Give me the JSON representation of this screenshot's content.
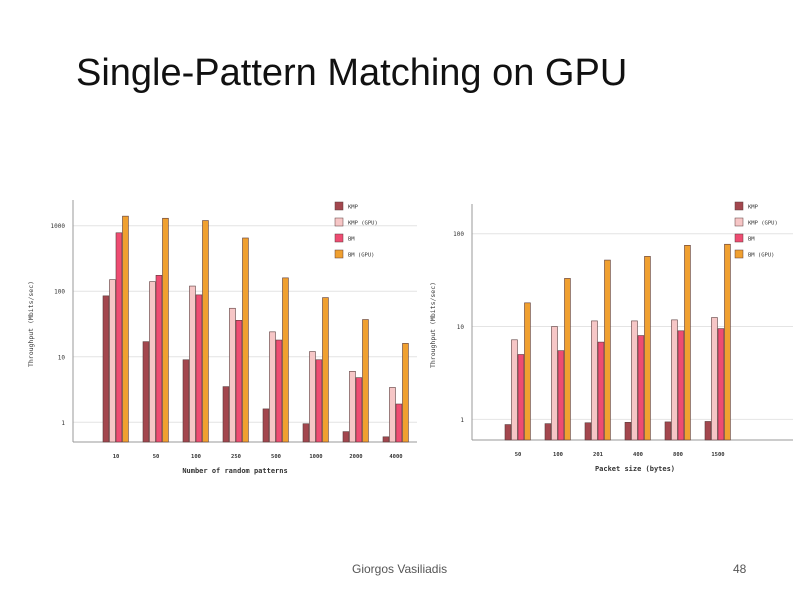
{
  "slide": {
    "title": "Single-Pattern Matching on GPU",
    "author": "Giorgos Vasiliadis",
    "page_number": "48"
  },
  "colors": {
    "KMP": "#a3474e",
    "KMP (GPU)": "#f6c6c6",
    "BM": "#ee4c72",
    "BM (GPU)": "#f0a030"
  },
  "chart_data": [
    {
      "type": "bar",
      "scale": "log",
      "ylabel": "Throughput (Mbits/sec)",
      "xlabel": "Number of random patterns",
      "categories": [
        "10",
        "50",
        "100",
        "250",
        "500",
        "1000",
        "2000",
        "4000"
      ],
      "ylim": [
        0.5,
        2000
      ],
      "yticks": [
        {
          "value": 1,
          "label": "1"
        },
        {
          "value": 10,
          "label": "10"
        },
        {
          "value": 100,
          "label": "100"
        },
        {
          "value": 1000,
          "label": "1000"
        }
      ],
      "legend": [
        "KMP",
        "KMP (GPU)",
        "BM",
        "BM (GPU)"
      ],
      "series": [
        {
          "name": "KMP",
          "values": [
            85,
            17,
            9,
            3.5,
            1.6,
            0.95,
            0.72,
            0.6
          ]
        },
        {
          "name": "KMP (GPU)",
          "values": [
            150,
            140,
            120,
            55,
            24,
            12,
            6,
            3.4
          ]
        },
        {
          "name": "BM",
          "values": [
            780,
            175,
            88,
            36,
            18,
            9,
            4.8,
            1.9
          ]
        },
        {
          "name": "BM (GPU)",
          "values": [
            1400,
            1300,
            1200,
            650,
            160,
            80,
            37,
            16
          ]
        }
      ]
    },
    {
      "type": "bar",
      "scale": "log",
      "ylabel": "Throughput (Mbits/sec)",
      "xlabel": "Packet size (bytes)",
      "categories": [
        "50",
        "100",
        "201",
        "400",
        "800",
        "1500"
      ],
      "ylim": [
        0.6,
        180
      ],
      "yticks": [
        {
          "value": 1,
          "label": "1"
        },
        {
          "value": 10,
          "label": "10"
        },
        {
          "value": 100,
          "label": "100"
        }
      ],
      "legend": [
        "KMP",
        "KMP (GPU)",
        "BM",
        "BM (GPU)"
      ],
      "series": [
        {
          "name": "KMP",
          "values": [
            0.88,
            0.9,
            0.92,
            0.93,
            0.94,
            0.95
          ]
        },
        {
          "name": "KMP (GPU)",
          "values": [
            7.2,
            10,
            11.5,
            11.5,
            11.8,
            12.5
          ]
        },
        {
          "name": "BM",
          "values": [
            5,
            5.5,
            6.8,
            8,
            9,
            9.5
          ]
        },
        {
          "name": "BM (GPU)",
          "values": [
            18,
            33,
            52,
            57,
            75,
            77
          ]
        }
      ]
    }
  ]
}
